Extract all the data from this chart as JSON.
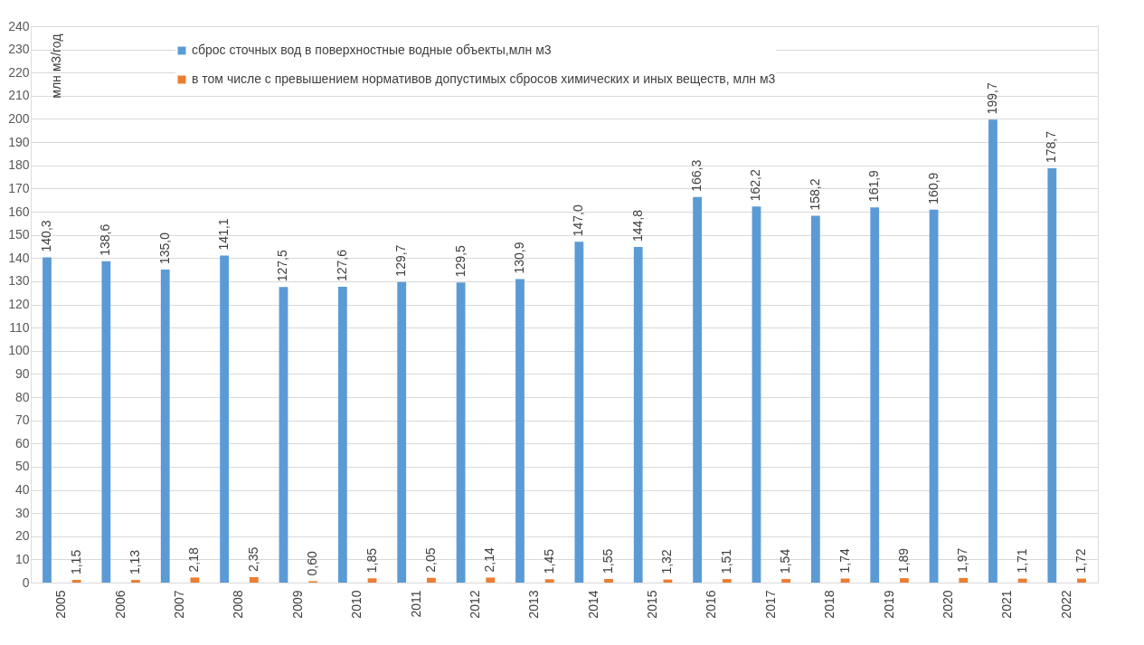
{
  "chart_data": {
    "type": "bar",
    "ylabel": "млн м3/год",
    "categories": [
      "2005",
      "2006",
      "2007",
      "2008",
      "2009",
      "2010",
      "2011",
      "2012",
      "2013",
      "2014",
      "2015",
      "2016",
      "2017",
      "2018",
      "2019",
      "2020",
      "2021",
      "2022"
    ],
    "series": [
      {
        "name": "сброс сточных вод в поверхностные водные объекты,млн м3",
        "color": "#5b9bd5",
        "values": [
          140.3,
          138.6,
          135.0,
          141.1,
          127.5,
          127.6,
          129.7,
          129.5,
          130.9,
          147.0,
          144.8,
          166.3,
          162.2,
          158.2,
          161.9,
          160.9,
          199.7,
          178.7
        ],
        "value_labels": [
          "140,3",
          "138,6",
          "135,0",
          "141,1",
          "127,5",
          "127,6",
          "129,7",
          "129,5",
          "130,9",
          "147,0",
          "144,8",
          "166,3",
          "162,2",
          "158,2",
          "161,9",
          "160,9",
          "199,7",
          "178,7"
        ]
      },
      {
        "name": "в том числе с превышением нормативов допустимых сбросов химических и иных веществ, млн м3",
        "color": "#ed7d31",
        "values": [
          1.15,
          1.13,
          2.18,
          2.35,
          0.6,
          1.85,
          2.05,
          2.14,
          1.45,
          1.55,
          1.32,
          1.51,
          1.54,
          1.74,
          1.89,
          1.97,
          1.71,
          1.72
        ],
        "value_labels": [
          "1,15",
          "1,13",
          "2,18",
          "2,35",
          "0,60",
          "1,85",
          "2,05",
          "2,14",
          "1,45",
          "1,55",
          "1,32",
          "1,51",
          "1,54",
          "1,74",
          "1,89",
          "1,97",
          "1,71",
          "1,72"
        ]
      }
    ],
    "ylim": [
      0,
      240
    ],
    "yticks": [
      0,
      10,
      20,
      30,
      40,
      50,
      60,
      70,
      80,
      90,
      100,
      110,
      120,
      130,
      140,
      150,
      160,
      170,
      180,
      190,
      200,
      210,
      220,
      230,
      240
    ],
    "grid": "y",
    "legend": "top left"
  }
}
